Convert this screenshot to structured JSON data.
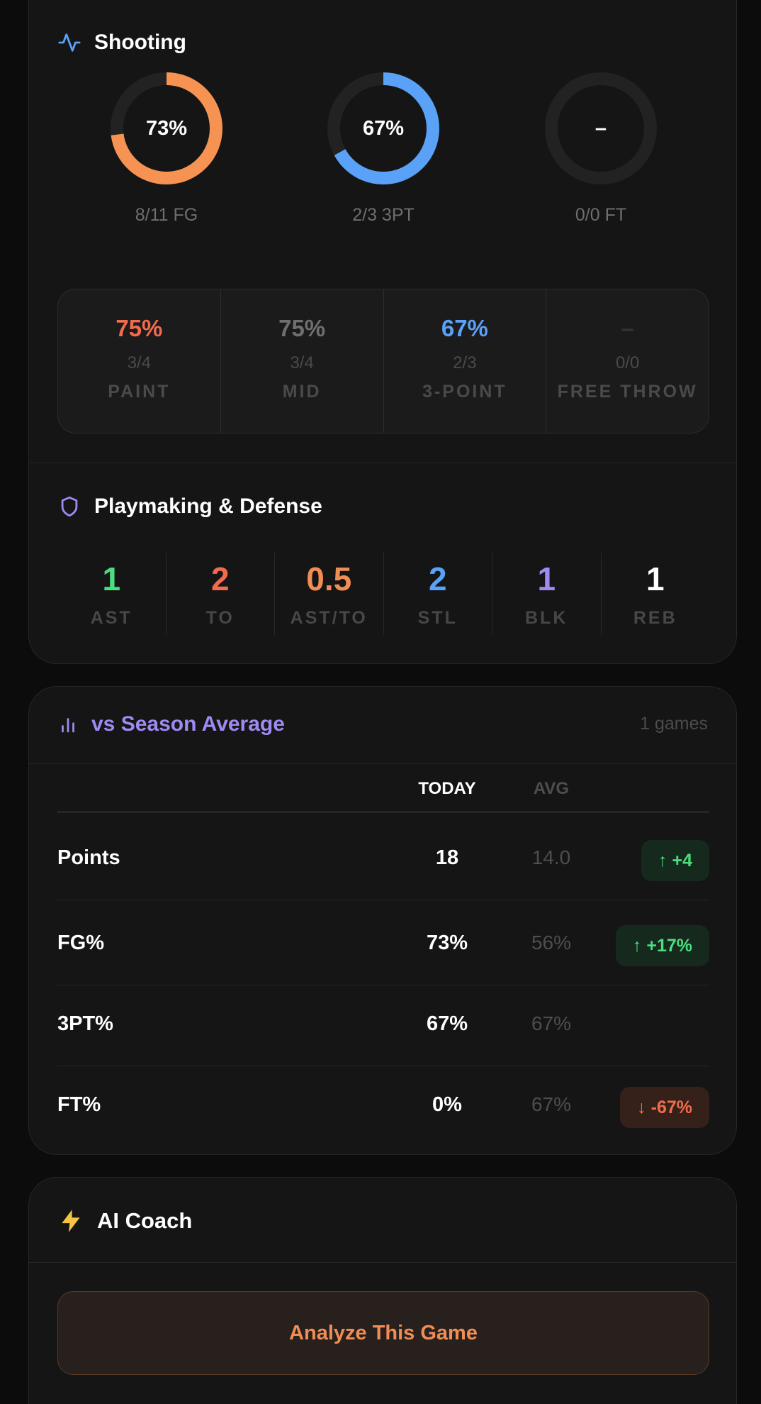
{
  "shooting": {
    "title": "Shooting",
    "rings": [
      {
        "pct_label": "73%",
        "fraction": 0.73,
        "caption": "8/11 FG",
        "color": "#f79352"
      },
      {
        "pct_label": "67%",
        "fraction": 0.67,
        "caption": "2/3 3PT",
        "color": "#5aa2f7"
      },
      {
        "pct_label": "–",
        "fraction": 0,
        "caption": "0/0 FT",
        "color": "#2a2a2a"
      }
    ],
    "zones": [
      {
        "pct": "75%",
        "frac": "3/4",
        "label": "PAINT",
        "color": "#f26b4c"
      },
      {
        "pct": "75%",
        "frac": "3/4",
        "label": "MID",
        "color": "#6f6f6f"
      },
      {
        "pct": "67%",
        "frac": "2/3",
        "label": "3-POINT",
        "color": "#5aa2f7"
      },
      {
        "pct": "–",
        "frac": "0/0",
        "label": "FREE THROW",
        "color": "#333333"
      }
    ]
  },
  "playmaking": {
    "title": "Playmaking & Defense",
    "stats": [
      {
        "value": "1",
        "label": "AST",
        "color": "#4ade80"
      },
      {
        "value": "2",
        "label": "TO",
        "color": "#f26b4c"
      },
      {
        "value": "0.5",
        "label": "AST/TO",
        "color": "#f08d55"
      },
      {
        "value": "2",
        "label": "STL",
        "color": "#5aa2f7"
      },
      {
        "value": "1",
        "label": "BLK",
        "color": "#a08af2"
      },
      {
        "value": "1",
        "label": "REB",
        "color": "#ffffff"
      }
    ]
  },
  "season": {
    "title": "vs Season Average",
    "games": "1 games",
    "col_today": "TODAY",
    "col_avg": "AVG",
    "rows": [
      {
        "label": "Points",
        "today": "18",
        "avg": "14.0",
        "delta": "↑ +4",
        "trend": "up"
      },
      {
        "label": "FG%",
        "today": "73%",
        "avg": "56%",
        "delta": "↑ +17%",
        "trend": "up"
      },
      {
        "label": "3PT%",
        "today": "67%",
        "avg": "67%",
        "delta": "",
        "trend": "none"
      },
      {
        "label": "FT%",
        "today": "0%",
        "avg": "67%",
        "delta": "↓ -67%",
        "trend": "down"
      }
    ]
  },
  "coach": {
    "title": "AI Coach",
    "button_label": "Analyze This Game"
  },
  "colors": {
    "title_purple": "#a08af2",
    "today_header": "#ffffff",
    "avg_header": "#4e4e4e"
  }
}
